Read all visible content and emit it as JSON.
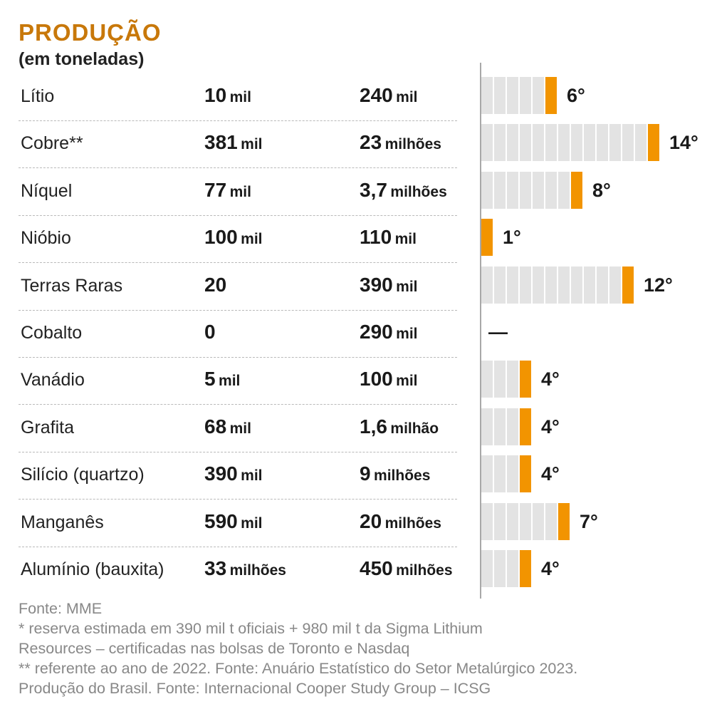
{
  "header": {
    "title": "PRODUÇÃO",
    "subtitle": "(em toneladas)"
  },
  "colors": {
    "accent": "#f29400",
    "title": "#c8780a",
    "track": "#e3e3e3"
  },
  "chart_data": {
    "type": "table",
    "title": "PRODUÇÃO",
    "subtitle": "(em toneladas)",
    "rank_max": 14,
    "rows": [
      {
        "name": "Lítio",
        "production": {
          "num": "10",
          "unit": "mil"
        },
        "reserve": {
          "num": "240",
          "unit": "mil"
        },
        "rank": 6,
        "rank_label": "6°"
      },
      {
        "name": "Cobre**",
        "production": {
          "num": "381",
          "unit": "mil"
        },
        "reserve": {
          "num": "23",
          "unit": "milhões"
        },
        "rank": 14,
        "rank_label": "14°"
      },
      {
        "name": "Níquel",
        "production": {
          "num": "77",
          "unit": "mil"
        },
        "reserve": {
          "num": "3,7",
          "unit": "milhões"
        },
        "rank": 8,
        "rank_label": "8°"
      },
      {
        "name": "Nióbio",
        "production": {
          "num": "100",
          "unit": "mil"
        },
        "reserve": {
          "num": "110",
          "unit": "mil"
        },
        "rank": 1,
        "rank_label": "1°"
      },
      {
        "name": "Terras Raras",
        "production": {
          "num": "20",
          "unit": ""
        },
        "reserve": {
          "num": "390",
          "unit": "mil"
        },
        "rank": 12,
        "rank_label": "12°"
      },
      {
        "name": "Cobalto",
        "production": {
          "num": "0",
          "unit": ""
        },
        "reserve": {
          "num": "290",
          "unit": "mil"
        },
        "rank": null,
        "rank_label": "—"
      },
      {
        "name": "Vanádio",
        "production": {
          "num": "5",
          "unit": "mil"
        },
        "reserve": {
          "num": "100",
          "unit": "mil"
        },
        "rank": 4,
        "rank_label": "4°"
      },
      {
        "name": "Grafita",
        "production": {
          "num": "68",
          "unit": "mil"
        },
        "reserve": {
          "num": "1,6",
          "unit": "milhão"
        },
        "rank": 4,
        "rank_label": "4°"
      },
      {
        "name": "Silício (quartzo)",
        "production": {
          "num": "390",
          "unit": "mil"
        },
        "reserve": {
          "num": "9",
          "unit": "milhões"
        },
        "rank": 4,
        "rank_label": "4°"
      },
      {
        "name": "Manganês",
        "production": {
          "num": "590",
          "unit": "mil"
        },
        "reserve": {
          "num": "20",
          "unit": "milhões"
        },
        "rank": 7,
        "rank_label": "7°"
      },
      {
        "name": "Alumínio (bauxita)",
        "production": {
          "num": "33",
          "unit": "milhões"
        },
        "reserve": {
          "num": "450",
          "unit": "milhões"
        },
        "rank": 4,
        "rank_label": "4°"
      }
    ]
  },
  "footer": {
    "notes": [
      "Fonte: MME",
      "* reserva estimada em 390 mil t oficiais + 980 mil t da Sigma Lithium",
      "Resources – certificadas nas bolsas de Toronto e Nasdaq",
      "** referente ao ano de 2022. Fonte: Anuário Estatístico do Setor Metalúrgico 2023.",
      "Produção do Brasil. Fonte: Internacional Cooper Study Group – ICSG"
    ]
  }
}
